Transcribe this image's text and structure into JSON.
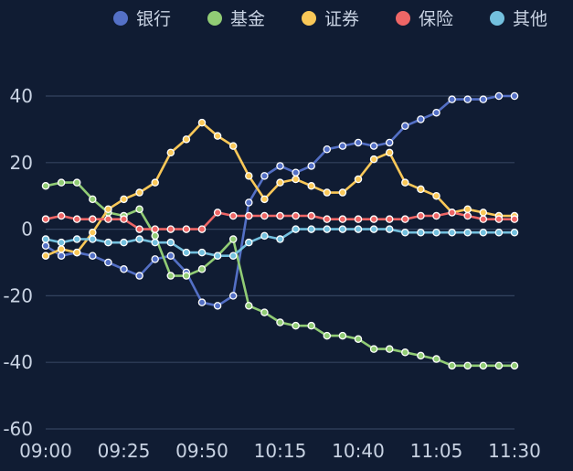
{
  "chart_data": {
    "type": "line",
    "title": "",
    "xlabel": "",
    "ylabel": "",
    "ylim": [
      -60,
      40
    ],
    "yticks": [
      40,
      20,
      0,
      -20,
      -40,
      -60
    ],
    "xlim": [
      "09:00",
      "11:30"
    ],
    "xticks": [
      "09:00",
      "09:25",
      "09:50",
      "10:15",
      "10:40",
      "11:05",
      "11:30"
    ],
    "grid": true,
    "legend_position": "top-right",
    "x": [
      "09:00",
      "09:05",
      "09:10",
      "09:15",
      "09:20",
      "09:25",
      "09:30",
      "09:35",
      "09:40",
      "09:45",
      "09:50",
      "09:55",
      "10:00",
      "10:05",
      "10:10",
      "10:15",
      "10:20",
      "10:25",
      "10:30",
      "10:35",
      "10:40",
      "10:45",
      "10:50",
      "10:55",
      "11:00",
      "11:05",
      "11:10",
      "11:15",
      "11:20",
      "11:25",
      "11:30"
    ],
    "series": [
      {
        "name": "银行",
        "color": "#5470c6",
        "values": [
          -5,
          -8,
          -7,
          -8,
          -10,
          -12,
          -14,
          -9,
          -8,
          -13,
          -22,
          -23,
          -20,
          8,
          16,
          19,
          17,
          19,
          24,
          25,
          26,
          25,
          26,
          31,
          33,
          35,
          39,
          39,
          39,
          40,
          40
        ]
      },
      {
        "name": "基金",
        "color": "#91cc75",
        "values": [
          13,
          14,
          14,
          9,
          5,
          4,
          6,
          -2,
          -14,
          -14,
          -12,
          -8,
          -3,
          -23,
          -25,
          -28,
          -29,
          -29,
          -32,
          -32,
          -33,
          -36,
          -36,
          -37,
          -38,
          -39,
          -41,
          -41,
          -41,
          -41,
          -41
        ]
      },
      {
        "name": "证券",
        "color": "#fac858",
        "values": [
          -8,
          -6,
          -7,
          -1,
          6,
          9,
          11,
          14,
          23,
          27,
          32,
          28,
          25,
          16,
          9,
          14,
          15,
          13,
          11,
          11,
          15,
          21,
          23,
          14,
          12,
          10,
          5,
          6,
          5,
          4,
          4
        ]
      },
      {
        "name": "保险",
        "color": "#ee6666",
        "values": [
          3,
          4,
          3,
          3,
          3,
          3,
          0,
          0,
          0,
          0,
          0,
          5,
          4,
          4,
          4,
          4,
          4,
          4,
          3,
          3,
          3,
          3,
          3,
          3,
          4,
          4,
          5,
          4,
          3,
          3,
          3
        ]
      },
      {
        "name": "其他",
        "color": "#73c0de",
        "values": [
          -3,
          -4,
          -3,
          -3,
          -4,
          -4,
          -3,
          -4,
          -4,
          -7,
          -7,
          -8,
          -8,
          -4,
          -2,
          -3,
          0,
          0,
          0,
          0,
          0,
          0,
          0,
          -1,
          -1,
          -1,
          -1,
          -1,
          -1,
          -1,
          -1
        ]
      }
    ]
  }
}
